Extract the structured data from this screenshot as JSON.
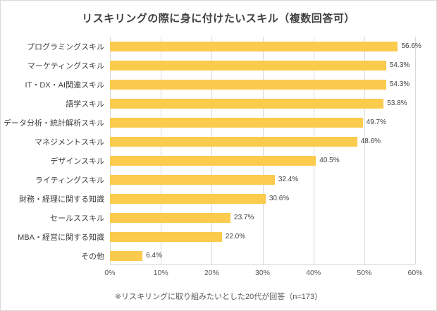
{
  "chart_data": {
    "type": "bar",
    "orientation": "horizontal",
    "title": "リスキリングの際に身に付けたいスキル（複数回答可）",
    "categories": [
      "プログラミングスキル",
      "マーケティングスキル",
      "IT・DX・AI関連スキル",
      "語学スキル",
      "データ分析・統計解析スキル",
      "マネジメントスキル",
      "デザインスキル",
      "ライティングスキル",
      "財務・経理に関する知識",
      "セールススキル",
      "MBA・経営に関する知識",
      "その他"
    ],
    "values": [
      56.6,
      54.3,
      54.3,
      53.8,
      49.7,
      48.6,
      40.5,
      32.4,
      30.6,
      23.7,
      22.0,
      6.4
    ],
    "value_labels": [
      "56.6%",
      "54.3%",
      "54.3%",
      "53.8%",
      "49.7%",
      "48.6%",
      "40.5%",
      "32.4%",
      "30.6%",
      "23.7%",
      "22.0%",
      "6.4%"
    ],
    "xlim": [
      0,
      60
    ],
    "x_ticks": [
      "0%",
      "10%",
      "20%",
      "30%",
      "40%",
      "50%",
      "60%"
    ],
    "grid": true,
    "legend": "none",
    "bar_color": "#fbcb4e",
    "gridline_color": "#d9d9d9",
    "footnote": "※リスキリングに取り組みたいとした20代が回答（n=173）"
  }
}
